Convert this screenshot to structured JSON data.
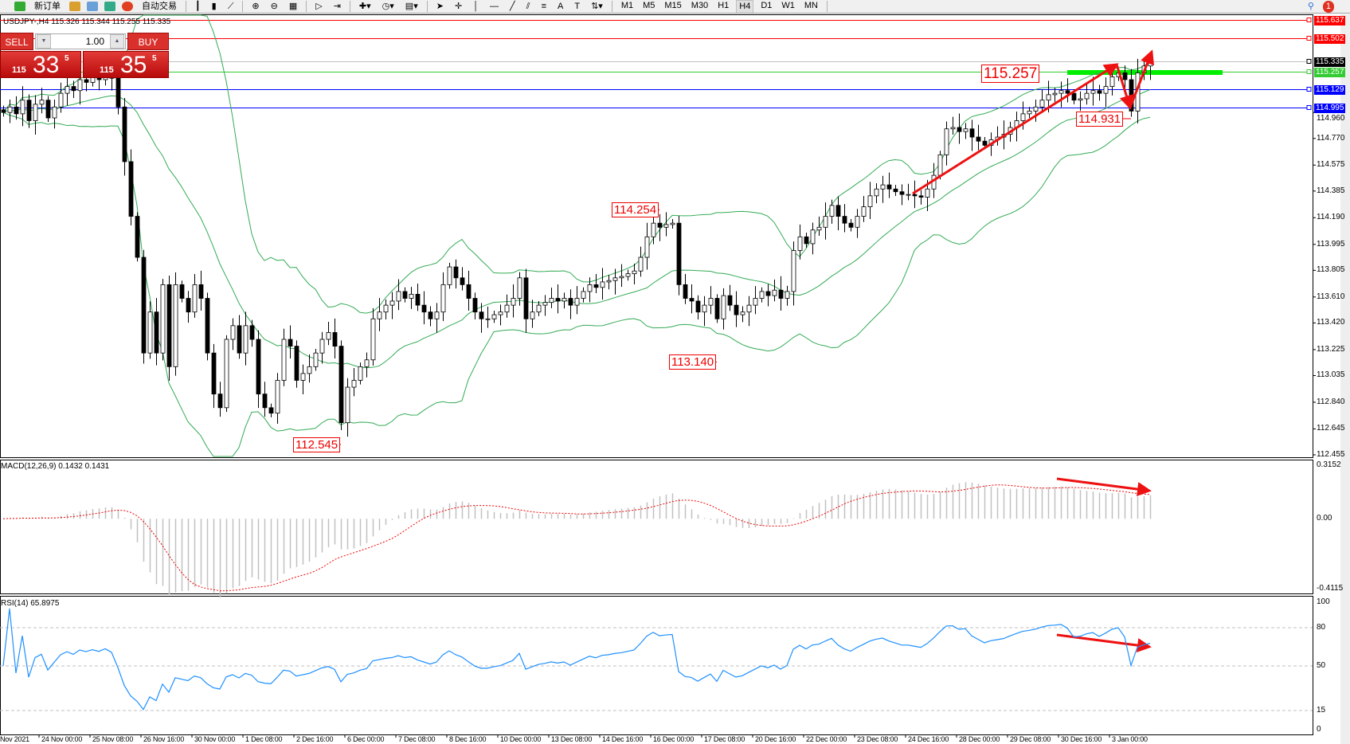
{
  "toolbar": {
    "new_order": "新订单",
    "auto_trading": "自动交易",
    "timeframes": [
      "M1",
      "M5",
      "M15",
      "M30",
      "H1",
      "H4",
      "D1",
      "W1",
      "MN"
    ],
    "active_timeframe": "H4",
    "notifications": "1"
  },
  "chart": {
    "symbol_line": "USDJPY-,H4  115.326 115.344 115.255 115.335",
    "price_ticks": [
      "114.960",
      "114.770",
      "114.575",
      "114.385",
      "114.190",
      "113.995",
      "113.805",
      "113.610",
      "113.420",
      "113.225",
      "113.035",
      "112.840",
      "112.645",
      "112.455"
    ],
    "price_range": [
      112.455,
      115.637
    ],
    "levels": [
      {
        "price": "115.637",
        "color": "#ff0000"
      },
      {
        "price": "115.502",
        "color": "#ff0000"
      },
      {
        "price": "115.335",
        "color": "#000000",
        "line": "#c0c0c0"
      },
      {
        "price": "115.257",
        "color": "#33cc33"
      },
      {
        "price": "115.129",
        "color": "#0000ff"
      },
      {
        "price": "114.995",
        "color": "#0000ff"
      }
    ],
    "annotations": [
      {
        "text": "115.257",
        "bar": 162,
        "big": true
      },
      {
        "text": "114.931",
        "bar": 177
      },
      {
        "text": "114.254",
        "bar": 103
      },
      {
        "text": "113.140",
        "bar": 112
      },
      {
        "text": "112.545",
        "bar": 53
      }
    ],
    "candle_up": "#ffffff",
    "candle_down": "#000000",
    "bands_color": "#33aa55",
    "closes": [
      114.96,
      115.0,
      114.95,
      115.05,
      114.9,
      115.02,
      115.05,
      114.92,
      115.0,
      115.1,
      115.15,
      115.12,
      115.2,
      115.18,
      115.22,
      115.2,
      115.25,
      115.21,
      115.0,
      114.6,
      114.2,
      113.9,
      113.2,
      113.5,
      113.2,
      113.7,
      113.1,
      113.7,
      113.6,
      113.5,
      113.7,
      113.6,
      113.2,
      112.9,
      112.8,
      113.3,
      113.4,
      113.2,
      113.4,
      113.3,
      112.9,
      112.8,
      112.76,
      113.0,
      113.3,
      113.25,
      113.0,
      113.05,
      113.1,
      113.2,
      113.3,
      113.35,
      113.25,
      112.69,
      112.95,
      113.0,
      113.1,
      113.15,
      113.45,
      113.5,
      113.55,
      113.58,
      113.65,
      113.6,
      113.63,
      113.55,
      113.5,
      113.45,
      113.5,
      113.7,
      113.83,
      113.75,
      113.7,
      113.6,
      113.5,
      113.45,
      113.45,
      113.48,
      113.5,
      113.55,
      113.6,
      113.75,
      113.45,
      113.5,
      113.55,
      113.57,
      113.6,
      113.58,
      113.6,
      113.55,
      113.6,
      113.65,
      113.7,
      113.68,
      113.72,
      113.73,
      113.75,
      113.76,
      113.78,
      113.8,
      113.9,
      114.05,
      114.15,
      114.12,
      114.14,
      114.15,
      113.7,
      113.6,
      113.58,
      113.5,
      113.55,
      113.6,
      113.45,
      113.62,
      113.55,
      113.48,
      113.5,
      113.55,
      113.6,
      113.65,
      113.62,
      113.66,
      113.6,
      113.65,
      113.95,
      114.05,
      114.0,
      114.1,
      114.12,
      114.2,
      114.28,
      114.2,
      114.15,
      114.12,
      114.2,
      114.27,
      114.35,
      114.4,
      114.43,
      114.4,
      114.38,
      114.36,
      114.36,
      114.35,
      114.34,
      114.4,
      114.5,
      114.65,
      114.84,
      114.85,
      114.82,
      114.84,
      114.78,
      114.75,
      114.72,
      114.76,
      114.78,
      114.8,
      114.85,
      114.9,
      114.95,
      114.97,
      115.0,
      115.05,
      115.09,
      115.1,
      115.12,
      115.1,
      115.05,
      115.06,
      115.1,
      115.12,
      115.1,
      115.15,
      115.22,
      115.25,
      115.2,
      114.97,
      115.25,
      115.3,
      115.335
    ]
  },
  "trade_panel": {
    "sell": "SELL",
    "buy": "BUY",
    "lot": "1.00",
    "bid_prefix": "115",
    "bid_big": "33",
    "bid_sup": "5",
    "ask_prefix": "115",
    "ask_big": "35",
    "ask_sup": "5"
  },
  "macd": {
    "title": "MACD(12,26,9) 0.1432 0.1431",
    "ticks": [
      "0.3152",
      "0.00",
      "-0.4115"
    ],
    "range": [
      -0.4115,
      0.3152
    ]
  },
  "rsi": {
    "title": "RSI(14) 65.8975",
    "ticks": [
      "100",
      "80",
      "50",
      "15",
      "0"
    ],
    "levels": [
      80,
      50,
      15
    ]
  },
  "dates": [
    "Nov 2021",
    "24 Nov 00:00",
    "25 Nov 08:00",
    "26 Nov 16:00",
    "30 Nov 00:00",
    "1 Dec 08:00",
    "2 Dec 16:00",
    "6 Dec 00:00",
    "7 Dec 08:00",
    "8 Dec 16:00",
    "10 Dec 00:00",
    "13 Dec 08:00",
    "14 Dec 16:00",
    "16 Dec 00:00",
    "17 Dec 08:00",
    "20 Dec 16:00",
    "22 Dec 00:00",
    "23 Dec 08:00",
    "24 Dec 16:00",
    "28 Dec 00:00",
    "29 Dec 08:00",
    "30 Dec 16:00",
    "3 Jan 00:00"
  ],
  "colors": {
    "arrow": "#ee1111",
    "green_zone": "#00ee00",
    "rsi_line": "#1e90ff",
    "macd_signal": "#ee0000",
    "macd_hist": "#c0c0c0"
  }
}
